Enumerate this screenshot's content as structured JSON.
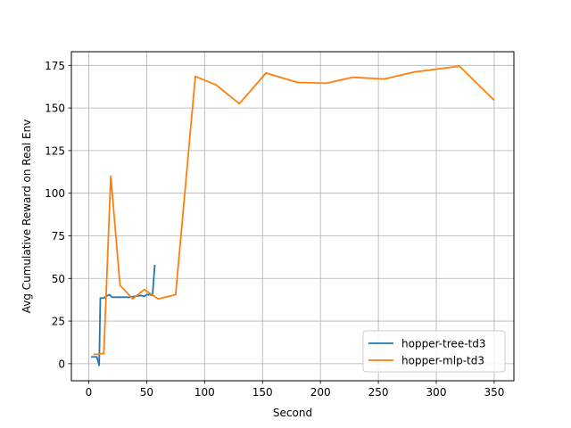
{
  "chart_data": {
    "type": "line",
    "xlabel": "Second",
    "ylabel": "Avg Cumulative Reward on Real Env",
    "xlim": [
      -15,
      367
    ],
    "ylim": [
      -10,
      183
    ],
    "xticks": [
      0,
      50,
      100,
      150,
      200,
      250,
      300,
      350
    ],
    "yticks": [
      0,
      25,
      50,
      75,
      100,
      125,
      150,
      175
    ],
    "grid": true,
    "legend_position": "lower-right",
    "series": [
      {
        "name": "hopper-tree-td3",
        "color": "#1f77b4",
        "x": [
          2,
          5,
          7,
          9,
          10,
          13,
          15,
          18,
          20,
          25,
          30,
          35,
          40,
          45,
          48,
          50,
          53,
          55,
          57
        ],
        "y": [
          4,
          4,
          4,
          -1,
          38.5,
          38.5,
          39.5,
          40.5,
          39,
          39,
          39,
          39,
          39.5,
          40,
          39.5,
          40.5,
          40.5,
          40,
          58
        ]
      },
      {
        "name": "hopper-mlp-td3",
        "color": "#ff7f0e",
        "x": [
          4,
          8,
          13,
          19,
          27,
          38,
          48,
          60,
          75,
          92,
          110,
          130,
          153,
          180,
          205,
          228,
          255,
          280,
          320,
          350
        ],
        "y": [
          5.5,
          5.5,
          6,
          110,
          46,
          38,
          43.5,
          38,
          40.5,
          168.5,
          163.5,
          152.5,
          170.5,
          165,
          164.5,
          168,
          167,
          171,
          174.5,
          154.5
        ]
      }
    ]
  }
}
